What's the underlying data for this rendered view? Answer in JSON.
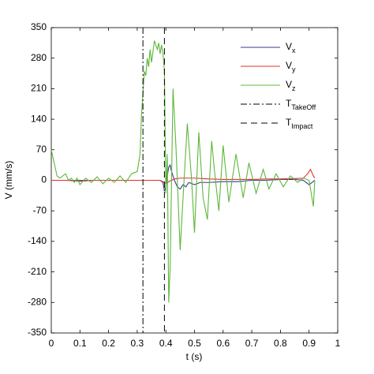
{
  "chart_data": {
    "type": "line",
    "xlabel": "t (s)",
    "ylabel": "V (mm/s)",
    "xlim": [
      0,
      1
    ],
    "ylim": [
      -350,
      350
    ],
    "xticks": [
      0,
      0.1,
      0.2,
      0.3,
      0.4,
      0.5,
      0.6,
      0.7,
      0.8,
      0.9,
      1
    ],
    "yticks": [
      -350,
      -280,
      -210,
      -140,
      -70,
      0,
      70,
      140,
      210,
      280,
      350
    ],
    "grid": false,
    "legend": "upper right",
    "series": [
      {
        "name": "V",
        "subscript": "x",
        "color": "#3a3a8c",
        "x": [
          0,
          0.05,
          0.1,
          0.15,
          0.2,
          0.25,
          0.3,
          0.35,
          0.38,
          0.39,
          0.395,
          0.4,
          0.405,
          0.41,
          0.415,
          0.42,
          0.43,
          0.44,
          0.45,
          0.46,
          0.47,
          0.48,
          0.5,
          0.52,
          0.55,
          0.6,
          0.65,
          0.7,
          0.75,
          0.8,
          0.85,
          0.88,
          0.9,
          0.91,
          0.92
        ],
        "values": [
          0,
          0,
          -2,
          0,
          0,
          0,
          0,
          0,
          0,
          -5,
          -25,
          -15,
          10,
          30,
          35,
          20,
          0,
          -15,
          -20,
          -10,
          -15,
          -5,
          -10,
          -5,
          -5,
          -3,
          -3,
          0,
          0,
          2,
          2,
          0,
          -10,
          -5,
          0
        ]
      },
      {
        "name": "V",
        "subscript": "y",
        "color": "#e03030",
        "x": [
          0,
          0.05,
          0.1,
          0.15,
          0.2,
          0.25,
          0.3,
          0.35,
          0.38,
          0.395,
          0.4,
          0.41,
          0.43,
          0.45,
          0.5,
          0.55,
          0.6,
          0.65,
          0.7,
          0.75,
          0.8,
          0.85,
          0.88,
          0.895,
          0.905,
          0.915,
          0.92
        ],
        "values": [
          0,
          0,
          0,
          0,
          0,
          0,
          0,
          0,
          0,
          -5,
          -8,
          -3,
          3,
          5,
          5,
          3,
          2,
          2,
          2,
          3,
          3,
          4,
          5,
          15,
          25,
          10,
          5
        ]
      },
      {
        "name": "V",
        "subscript": "z",
        "color": "#5cb83a",
        "x": [
          0,
          0.01,
          0.02,
          0.03,
          0.04,
          0.05,
          0.06,
          0.07,
          0.08,
          0.09,
          0.1,
          0.12,
          0.14,
          0.16,
          0.18,
          0.2,
          0.22,
          0.24,
          0.26,
          0.28,
          0.3,
          0.31,
          0.315,
          0.32,
          0.325,
          0.33,
          0.335,
          0.34,
          0.345,
          0.35,
          0.36,
          0.37,
          0.375,
          0.38,
          0.385,
          0.39,
          0.395,
          0.4,
          0.405,
          0.41,
          0.415,
          0.425,
          0.435,
          0.45,
          0.46,
          0.475,
          0.49,
          0.5,
          0.515,
          0.53,
          0.545,
          0.56,
          0.57,
          0.585,
          0.6,
          0.62,
          0.645,
          0.67,
          0.69,
          0.715,
          0.74,
          0.76,
          0.785,
          0.81,
          0.835,
          0.86,
          0.88,
          0.9,
          0.915,
          0.92
        ],
        "values": [
          70,
          40,
          10,
          5,
          10,
          15,
          0,
          5,
          -5,
          5,
          -10,
          5,
          -5,
          8,
          -8,
          5,
          -5,
          10,
          -5,
          15,
          20,
          60,
          150,
          200,
          250,
          240,
          280,
          260,
          300,
          270,
          320,
          300,
          315,
          290,
          310,
          290,
          250,
          -30,
          60,
          -280,
          -200,
          210,
          80,
          -160,
          -40,
          130,
          0,
          -120,
          110,
          -40,
          -90,
          90,
          20,
          -70,
          80,
          -50,
          60,
          -40,
          40,
          -30,
          25,
          -20,
          15,
          -15,
          10,
          -5,
          5,
          0,
          -60,
          0
        ]
      }
    ],
    "markers": [
      {
        "name": "T",
        "subscript": "TakeOff",
        "x": 0.32,
        "style": "dash-dot"
      },
      {
        "name": "T",
        "subscript": "Impact",
        "x": 0.395,
        "style": "dashed"
      }
    ]
  }
}
